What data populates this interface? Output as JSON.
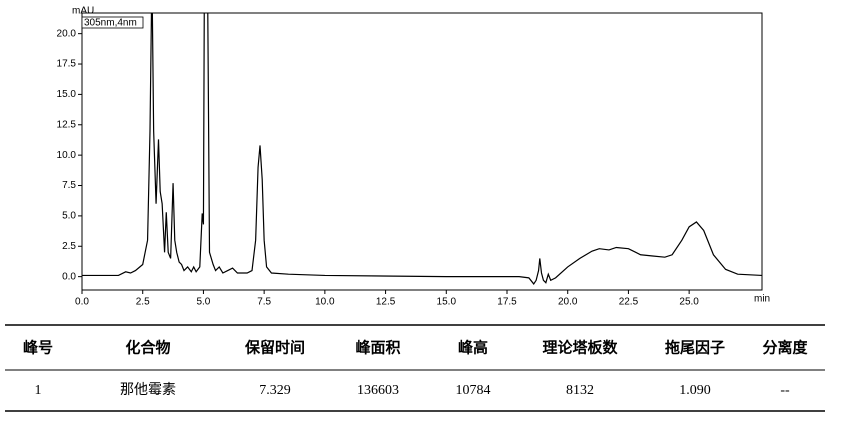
{
  "chart_data": {
    "type": "line",
    "y_label": "mAU",
    "x_label": "min",
    "annotation": "305nm,4nm",
    "x": [
      0,
      1.5,
      1.8,
      2.0,
      2.2,
      2.5,
      2.7,
      2.8,
      2.88,
      2.95,
      3.05,
      3.15,
      3.22,
      3.3,
      3.4,
      3.47,
      3.55,
      3.65,
      3.75,
      3.82,
      3.9,
      4.0,
      4.1,
      4.2,
      4.35,
      4.5,
      4.6,
      4.7,
      4.85,
      4.95,
      5.0,
      5.05,
      5.15,
      5.25,
      5.4,
      5.5,
      5.65,
      5.8,
      6.0,
      6.2,
      6.4,
      6.8,
      7.0,
      7.15,
      7.25,
      7.33,
      7.42,
      7.5,
      7.6,
      7.8,
      8.5,
      10,
      15,
      18,
      18.4,
      18.6,
      18.7,
      18.8,
      18.85,
      18.92,
      19.0,
      19.1,
      19.2,
      19.3,
      19.5,
      20,
      20.5,
      21,
      21.3,
      21.7,
      22,
      22.5,
      23,
      23.5,
      24,
      24.3,
      24.7,
      25.0,
      25.3,
      25.6,
      26.0,
      26.5,
      27,
      28
    ],
    "series": [
      {
        "name": "305nm,4nm",
        "color": "#000000",
        "values": [
          0.1,
          0.1,
          0.4,
          0.3,
          0.5,
          1.0,
          3,
          12,
          25,
          12,
          6,
          11.3,
          7,
          6,
          2,
          5.3,
          2,
          1.5,
          7.7,
          3,
          2,
          1.2,
          1.0,
          0.5,
          0.8,
          0.4,
          0.8,
          0.4,
          0.8,
          5.2,
          4.3,
          30,
          30,
          2,
          1.0,
          0.5,
          0.8,
          0.3,
          0.5,
          0.7,
          0.3,
          0.3,
          0.5,
          3,
          9,
          10.8,
          8,
          3,
          0.8,
          0.3,
          0.2,
          0.1,
          0.0,
          0.0,
          -0.1,
          -0.6,
          -0.3,
          0.5,
          1.5,
          0.3,
          -0.3,
          -0.5,
          0.2,
          -0.3,
          -0.1,
          0.8,
          1.5,
          2.1,
          2.3,
          2.2,
          2.4,
          2.3,
          1.8,
          1.7,
          1.6,
          1.8,
          3.0,
          4.1,
          4.5,
          3.8,
          1.8,
          0.6,
          0.2,
          0.1
        ]
      }
    ],
    "xlim": [
      0,
      28
    ],
    "ylim": [
      -1.1,
      21.7
    ],
    "xticks": [
      {
        "value": 0,
        "label": "0.0"
      },
      {
        "value": 2.5,
        "label": "2.5"
      },
      {
        "value": 5,
        "label": "5.0"
      },
      {
        "value": 7.5,
        "label": "7.5"
      },
      {
        "value": 10,
        "label": "10.0"
      },
      {
        "value": 12.5,
        "label": "12.5"
      },
      {
        "value": 15,
        "label": "15.0"
      },
      {
        "value": 17.5,
        "label": "17.5"
      },
      {
        "value": 20,
        "label": "20.0"
      },
      {
        "value": 22.5,
        "label": "22.5"
      },
      {
        "value": 25,
        "label": "25.0"
      }
    ],
    "yticks": [
      {
        "value": 0,
        "label": "0.0"
      },
      {
        "value": 2.5,
        "label": "2.5"
      },
      {
        "value": 5,
        "label": "5.0"
      },
      {
        "value": 7.5,
        "label": "7.5"
      },
      {
        "value": 10,
        "label": "10.0"
      },
      {
        "value": 12.5,
        "label": "12.5"
      },
      {
        "value": 15,
        "label": "15.0"
      },
      {
        "value": 17.5,
        "label": "17.5"
      },
      {
        "value": 20,
        "label": "20.0"
      }
    ],
    "grid": false
  },
  "table": {
    "header": [
      "峰号",
      "化合物",
      "保留时间",
      "峰面积",
      "峰高",
      "理论塔板数",
      "拖尾因子",
      "分离度"
    ],
    "rows": [
      [
        "1",
        "那他霉素",
        "7.329",
        "136603",
        "10784",
        "8132",
        "1.090",
        "--"
      ]
    ]
  }
}
